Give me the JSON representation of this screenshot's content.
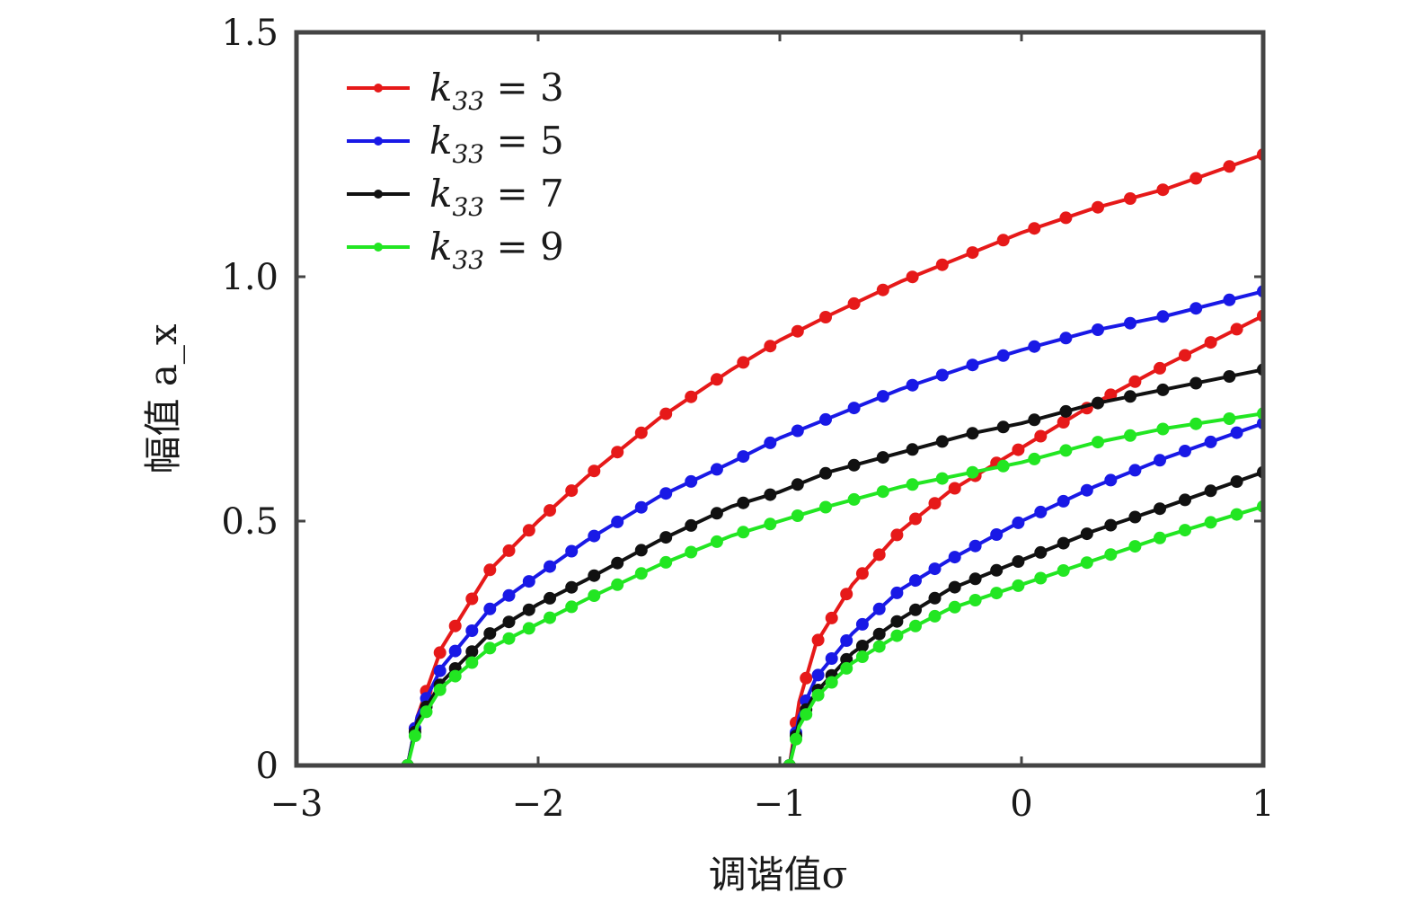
{
  "chart_data": {
    "type": "line",
    "xlabel": "调谐值σ",
    "ylabel": "幅值 a_x",
    "xlim": [
      -3,
      1
    ],
    "ylim": [
      0,
      1.5
    ],
    "xticks": [
      -3,
      -2,
      -1,
      0,
      1
    ],
    "xtick_labels": [
      "−3",
      "−2",
      "−1",
      "0",
      "1"
    ],
    "yticks": [
      0,
      0.5,
      1.0,
      1.5
    ],
    "ytick_labels": [
      "0",
      "0.5",
      "1.0",
      "1.5"
    ],
    "grid": false,
    "legend_position": "top-left",
    "series": [
      {
        "name": "k33 = 3",
        "legend_main": "k",
        "legend_sub": "33",
        "legend_rest": " = 3",
        "color": "#e61919",
        "branches": [
          {
            "x": [
              -2.54,
              -2.5,
              -2.4,
              -2.2,
              -2.0,
              -1.8,
              -1.5,
              -1.2,
              -1.0,
              -0.8,
              -0.5,
              -0.2,
              0.0,
              0.3,
              0.6,
              1.0
            ],
            "y": [
              0.0,
              0.1,
              0.24,
              0.4,
              0.5,
              0.59,
              0.71,
              0.81,
              0.87,
              0.92,
              0.99,
              1.05,
              1.09,
              1.14,
              1.18,
              1.25
            ]
          },
          {
            "x": [
              -0.96,
              -0.92,
              -0.85,
              -0.7,
              -0.5,
              -0.3,
              0.0,
              0.3,
              0.6,
              1.0
            ],
            "y": [
              0.0,
              0.13,
              0.25,
              0.37,
              0.48,
              0.56,
              0.65,
              0.74,
              0.82,
              0.92
            ]
          }
        ]
      },
      {
        "name": "k33 = 5",
        "legend_main": "k",
        "legend_sub": "33",
        "legend_rest": " = 5",
        "color": "#1919e6",
        "branches": [
          {
            "x": [
              -2.54,
              -2.5,
              -2.4,
              -2.2,
              -2.0,
              -1.8,
              -1.5,
              -1.2,
              -1.0,
              -0.8,
              -0.5,
              -0.2,
              0.0,
              0.3,
              0.6,
              1.0
            ],
            "y": [
              0.0,
              0.1,
              0.2,
              0.32,
              0.39,
              0.46,
              0.55,
              0.62,
              0.67,
              0.71,
              0.77,
              0.82,
              0.85,
              0.89,
              0.92,
              0.97
            ]
          },
          {
            "x": [
              -0.96,
              -0.92,
              -0.85,
              -0.7,
              -0.5,
              -0.3,
              0.0,
              0.3,
              0.6,
              1.0
            ],
            "y": [
              0.0,
              0.1,
              0.18,
              0.27,
              0.36,
              0.42,
              0.5,
              0.57,
              0.63,
              0.7
            ]
          }
        ]
      },
      {
        "name": "k33 = 7",
        "legend_main": "k",
        "legend_sub": "33",
        "legend_rest": " = 7",
        "color": "#111111",
        "branches": [
          {
            "x": [
              -2.54,
              -2.5,
              -2.4,
              -2.2,
              -2.0,
              -1.8,
              -1.5,
              -1.2,
              -1.0,
              -0.8,
              -0.5,
              -0.2,
              0.0,
              0.3,
              0.6,
              1.0
            ],
            "y": [
              0.0,
              0.09,
              0.17,
              0.27,
              0.33,
              0.38,
              0.46,
              0.53,
              0.56,
              0.6,
              0.64,
              0.68,
              0.7,
              0.74,
              0.77,
              0.81
            ]
          },
          {
            "x": [
              -0.96,
              -0.92,
              -0.85,
              -0.7,
              -0.5,
              -0.3,
              0.0,
              0.3,
              0.6,
              1.0
            ],
            "y": [
              0.0,
              0.09,
              0.15,
              0.23,
              0.3,
              0.36,
              0.42,
              0.48,
              0.53,
              0.6
            ]
          }
        ]
      },
      {
        "name": "k33 = 9",
        "legend_main": "k",
        "legend_sub": "33",
        "legend_rest": " = 9",
        "color": "#22e622",
        "branches": [
          {
            "x": [
              -2.54,
              -2.5,
              -2.4,
              -2.2,
              -2.0,
              -1.8,
              -1.5,
              -1.2,
              -1.0,
              -0.8,
              -0.5,
              -0.2,
              0.0,
              0.3,
              0.6,
              1.0
            ],
            "y": [
              0.0,
              0.08,
              0.16,
              0.24,
              0.29,
              0.34,
              0.41,
              0.47,
              0.5,
              0.53,
              0.57,
              0.6,
              0.62,
              0.66,
              0.69,
              0.72
            ]
          },
          {
            "x": [
              -0.96,
              -0.92,
              -0.85,
              -0.7,
              -0.5,
              -0.3,
              0.0,
              0.3,
              0.6,
              1.0
            ],
            "y": [
              0.0,
              0.08,
              0.14,
              0.21,
              0.27,
              0.32,
              0.37,
              0.42,
              0.47,
              0.53
            ]
          }
        ]
      }
    ]
  }
}
